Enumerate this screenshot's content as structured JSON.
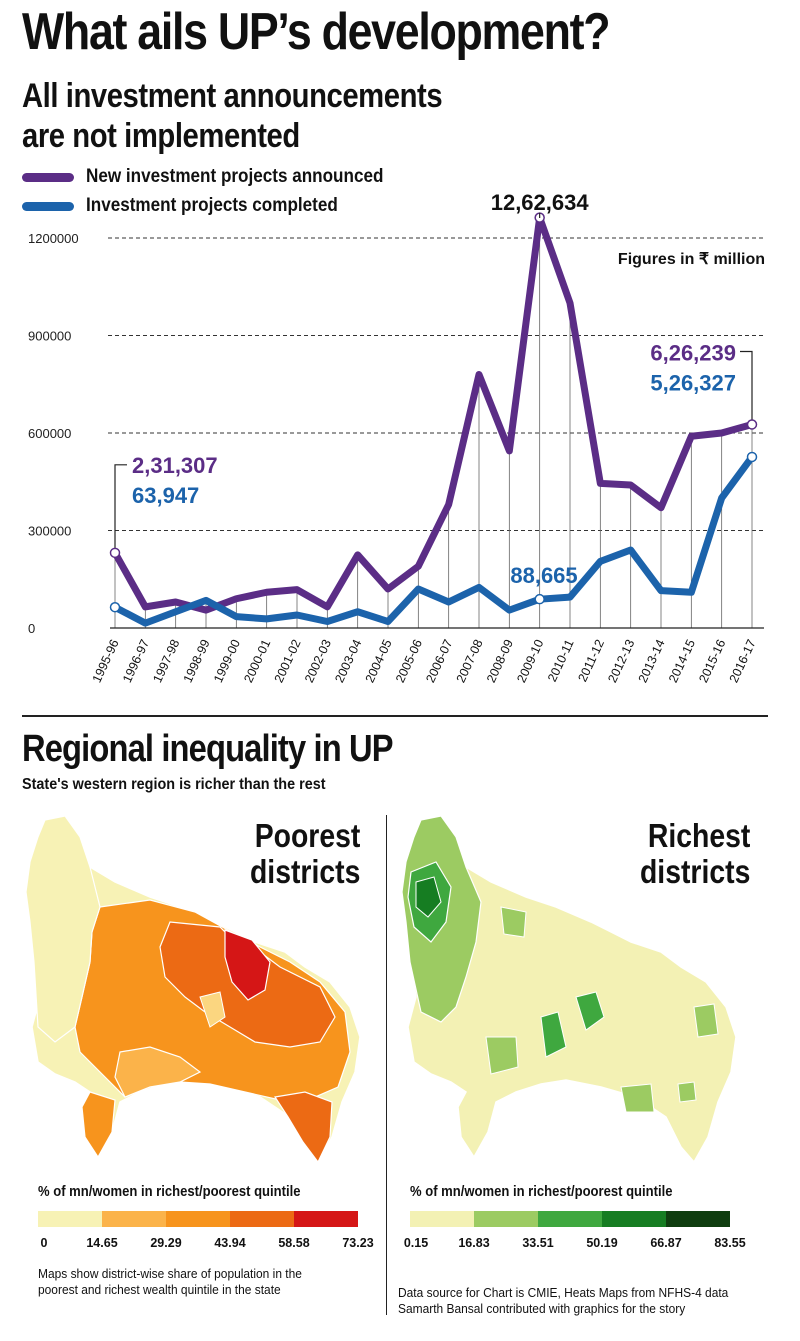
{
  "header": {
    "title": "What ails UP’s development?",
    "subtitle_line1": "All investment announcements",
    "subtitle_line2": "are not implemented"
  },
  "colors": {
    "announced": "#5b2d86",
    "completed": "#1c63ab",
    "grid": "#333333"
  },
  "chart_data": {
    "type": "line",
    "x": [
      "1995-96",
      "1996-97",
      "1997-98",
      "1998-99",
      "1999-00",
      "2000-01",
      "2001-02",
      "2002-03",
      "2003-04",
      "2004-05",
      "2005-06",
      "2006-07",
      "2007-08",
      "2008-09",
      "2009-10",
      "2010-11",
      "2011-12",
      "2012-13",
      "2013-14",
      "2014-15",
      "2015-16",
      "2016-17"
    ],
    "series": [
      {
        "name": "New investment projects announced",
        "color": "#5b2d86",
        "values": [
          231307,
          65000,
          80000,
          55000,
          90000,
          110000,
          118000,
          65000,
          225000,
          120000,
          190000,
          380000,
          780000,
          545000,
          1262634,
          1000000,
          445000,
          440000,
          370000,
          590000,
          600000,
          626239
        ]
      },
      {
        "name": "Investment projects completed",
        "color": "#1c63ab",
        "values": [
          63947,
          15000,
          50000,
          85000,
          35000,
          28000,
          40000,
          20000,
          50000,
          20000,
          120000,
          80000,
          125000,
          55000,
          88665,
          95000,
          205000,
          240000,
          115000,
          110000,
          400000,
          526327
        ]
      }
    ],
    "yticks": [
      "0",
      "300000",
      "600000",
      "900000",
      "1200000"
    ],
    "ylim": [
      0,
      1300000
    ],
    "unit_note": "Figures in ₹ million",
    "annotations": {
      "peak": "12,62,634",
      "start_announced": "2,31,307",
      "start_completed": "63,947",
      "mid_completed": "88,665",
      "end_announced": "6,26,239",
      "end_completed": "5,26,327"
    },
    "grid": true,
    "legend_position": "top-left"
  },
  "section2": {
    "title": "Regional inequality in UP",
    "subtitle": "State's western region is richer than the rest"
  },
  "maps": {
    "poorest": {
      "title_line1": "Poorest",
      "title_line2": "districts",
      "scale_caption": "% of mn/women in richest/poorest quintile",
      "scale_colors": [
        "#f7f2b5",
        "#fbb34a",
        "#f7941d",
        "#ec6a14",
        "#d51616"
      ],
      "scale_ticks": [
        "0",
        "14.65",
        "29.29",
        "43.94",
        "58.58",
        "73.23"
      ]
    },
    "richest": {
      "title_line1": "Richest",
      "title_line2": "districts",
      "scale_caption": "% of mn/women in richest/poorest quintile",
      "scale_colors": [
        "#f3f1b4",
        "#9ccb62",
        "#3fa83f",
        "#167d22",
        "#0f3d0f"
      ],
      "scale_ticks": [
        "0.15",
        "16.83",
        "33.51",
        "50.19",
        "66.87",
        "83.55"
      ]
    }
  },
  "notes": {
    "map_note_line1": "Maps show district-wise share of population in the",
    "map_note_line2": "poorest and richest wealth quintile in the state",
    "source_line1": "Data source for Chart is CMIE, Heats Maps from NFHS-4 data",
    "source_line2": "Samarth Bansal contributed with graphics for the story"
  }
}
